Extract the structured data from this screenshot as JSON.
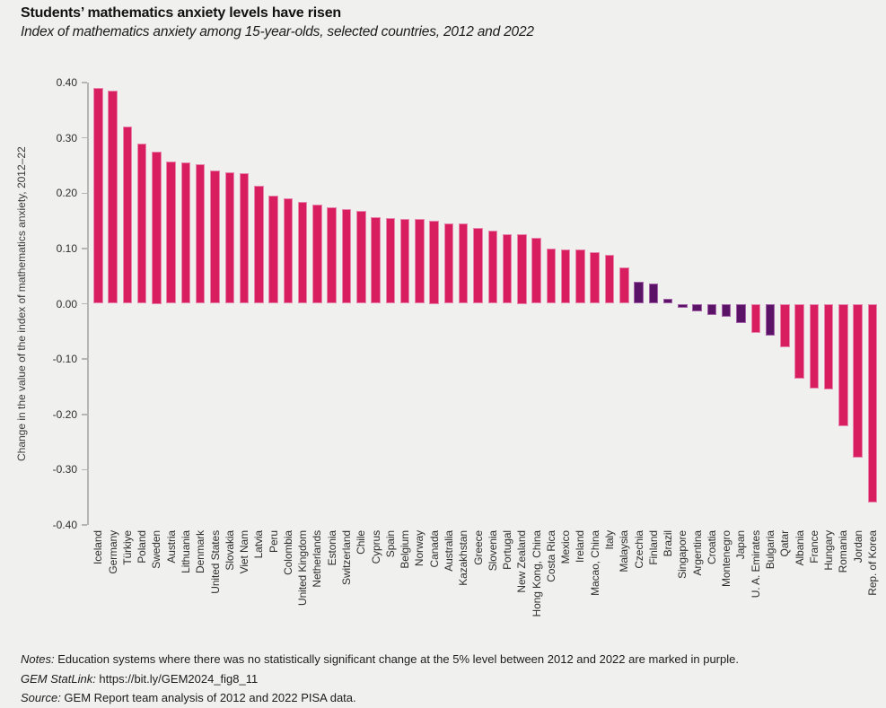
{
  "header": {
    "title": "Students’ mathematics anxiety levels have risen",
    "subtitle": "Index of mathematics anxiety among 15-year-olds, selected countries, 2012 and 2022"
  },
  "colors": {
    "background": "#f0f0ee",
    "pink": "#d91e5f",
    "pink_border": "#e887ad",
    "purple": "#5a1367",
    "purple_border": "#a263a8",
    "axis": "#b5b5b3"
  },
  "chart_data": {
    "type": "bar",
    "title": "Students’ mathematics anxiety levels have risen",
    "subtitle": "Index of mathematics anxiety among 15-year-olds, selected countries, 2012 and 2022",
    "xlabel": "",
    "ylabel": "Change in the value of the index of mathematics anxiety, 2012–22",
    "ylim": [
      -0.4,
      0.4
    ],
    "grid": false,
    "legend_note": "Purple bars = no statistically significant change at the 5% level",
    "yticks": [
      "0.40",
      "0.30",
      "0.20",
      "0.10",
      "0.00",
      "-0.10",
      "-0.20",
      "-0.30",
      "-0.40"
    ],
    "categories": [
      "Iceland",
      "Germany",
      "Türkiye",
      "Poland",
      "Sweden",
      "Austria",
      "Lithuania",
      "Denmark",
      "United States",
      "Slovakia",
      "Viet Nam",
      "Latvia",
      "Peru",
      "Colombia",
      "United Kingdom",
      "Netherlands",
      "Estonia",
      "Switzerland",
      "Chile",
      "Cyprus",
      "Spain",
      "Belgium",
      "Norway",
      "Canada",
      "Australia",
      "Kazakhstan",
      "Greece",
      "Slovenia",
      "Portugal",
      "New Zealand",
      "Hong Kong, China",
      "Costa Rica",
      "Mexico",
      "Ireland",
      "Macao, China",
      "Italy",
      "Malaysia",
      "Czechia",
      "Finland",
      "Brazil",
      "Singapore",
      "Argentina",
      "Croatia",
      "Montenegro",
      "Japan",
      "U. A. Emirates",
      "Bulgaria",
      "Qatar",
      "Albania",
      "France",
      "Hungary",
      "Romania",
      "Jordan",
      "Rep. of Korea"
    ],
    "values": [
      0.39,
      0.385,
      0.32,
      0.289,
      0.275,
      0.257,
      0.255,
      0.252,
      0.241,
      0.237,
      0.236,
      0.213,
      0.196,
      0.19,
      0.184,
      0.179,
      0.174,
      0.172,
      0.168,
      0.157,
      0.155,
      0.153,
      0.153,
      0.15,
      0.146,
      0.146,
      0.137,
      0.133,
      0.126,
      0.125,
      0.119,
      0.099,
      0.098,
      0.098,
      0.093,
      0.089,
      0.066,
      0.039,
      0.036,
      0.009,
      -0.008,
      -0.013,
      -0.02,
      -0.023,
      -0.035,
      -0.053,
      -0.058,
      -0.079,
      -0.135,
      -0.153,
      -0.155,
      -0.221,
      -0.278,
      -0.36
    ],
    "not_significant": [
      0,
      0,
      0,
      0,
      0,
      0,
      0,
      0,
      0,
      0,
      0,
      0,
      0,
      0,
      0,
      0,
      0,
      0,
      0,
      0,
      0,
      0,
      0,
      0,
      0,
      0,
      0,
      0,
      0,
      0,
      0,
      0,
      0,
      0,
      0,
      0,
      0,
      1,
      1,
      1,
      1,
      1,
      1,
      1,
      1,
      0,
      1,
      0,
      0,
      0,
      0,
      0,
      0,
      0
    ]
  },
  "footer": {
    "notes_label": "Notes:",
    "notes_text": " Education systems where there was no statistically significant change at the 5% level between 2012 and 2022 are marked in purple.",
    "statlink_label": "GEM StatLink:",
    "statlink_url": " https://bit.ly/GEM2024_fig8_11",
    "source_label": "Source:",
    "source_text": " GEM Report team analysis of 2012 and 2022 PISA data."
  }
}
